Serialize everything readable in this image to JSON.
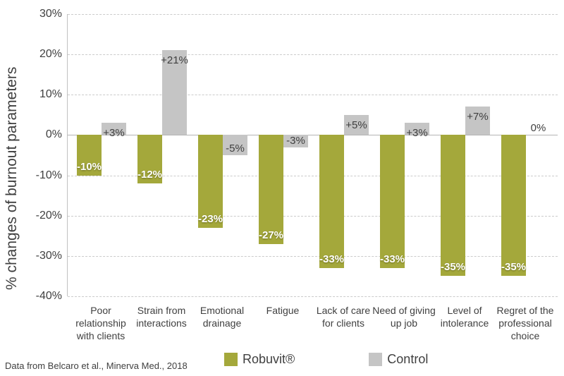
{
  "figure": {
    "footer": "Data from Belcaro et al., Minerva Med., 2018"
  },
  "colors": {
    "robuvit": "#a4a83b",
    "control": "#c5c5c5",
    "text": "#3f3f3f",
    "grid": "#cbcbcb",
    "zero_line": "#b5b5b5",
    "axis_line": "#c0c0c0",
    "bar_label_on_green": "#ffffff"
  },
  "chart_data": {
    "type": "bar",
    "title": "",
    "xlabel": "",
    "ylabel": "% changes of burnout parameters",
    "ylim": [
      -40,
      30
    ],
    "ytick_step": 10,
    "yticks": [
      30,
      20,
      10,
      0,
      -10,
      -20,
      -30,
      -40
    ],
    "ytick_labels": [
      "30%",
      "20%",
      "10%",
      "0%",
      "-10%",
      "-20%",
      "-30%",
      "-40%"
    ],
    "grid": "horizontal dashed",
    "legend_position": "bottom",
    "categories": [
      "Poor relationship with clients",
      "Strain from interactions",
      "Emotional drainage",
      "Fatigue",
      "Lack of care for clients",
      "Need of giving up job",
      "Level of intolerance",
      "Regret of the professional choice"
    ],
    "series": [
      {
        "name": "Robuvit®",
        "color": "#a4a83b",
        "values": [
          -10,
          -12,
          -23,
          -27,
          -33,
          -33,
          -35,
          -35
        ],
        "labels": [
          "-10%",
          "-12%",
          "-23%",
          "-27%",
          "-33%",
          "-33%",
          "-35%",
          "-35%"
        ]
      },
      {
        "name": "Control",
        "color": "#c5c5c5",
        "values": [
          3,
          21,
          -5,
          -3,
          5,
          3,
          7,
          0
        ],
        "labels": [
          "+3%",
          "+21%",
          "-5%",
          "-3%",
          "+5%",
          "+3%",
          "+7%",
          "0%"
        ]
      }
    ]
  }
}
